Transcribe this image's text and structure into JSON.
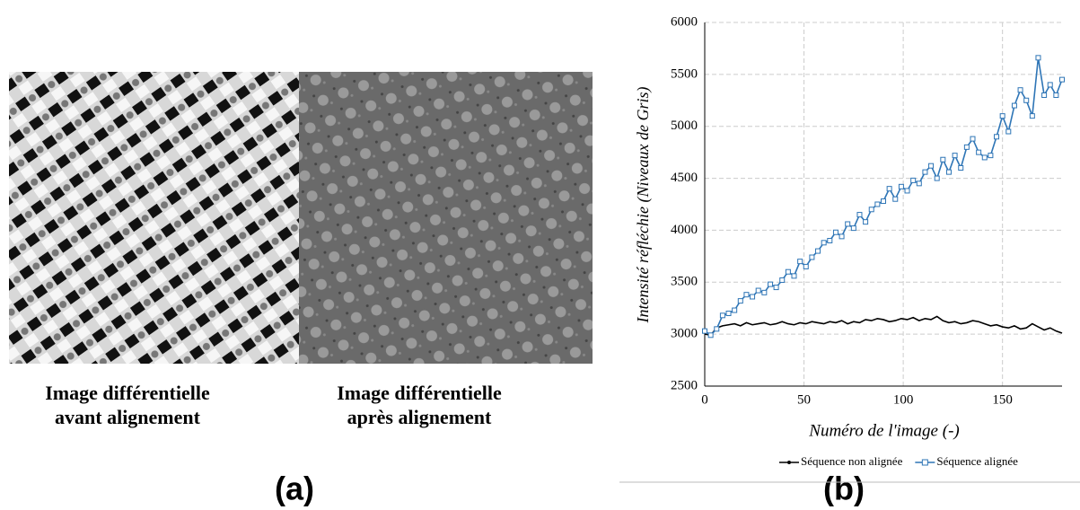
{
  "figure": {
    "captions": [
      [
        "Image différentielle",
        "avant alignement"
      ],
      [
        "Image différentielle",
        "après alignement"
      ]
    ],
    "label_a": "(a)"
  },
  "chart_data": {
    "type": "line",
    "panel_label": "(b)",
    "xlabel": "Numéro de l'image (-)",
    "ylabel": "Intensité réfléchie (Niveaux de Gris)",
    "x": [
      0,
      3,
      6,
      9,
      12,
      15,
      18,
      21,
      24,
      27,
      30,
      33,
      36,
      39,
      42,
      45,
      48,
      51,
      54,
      57,
      60,
      63,
      66,
      69,
      72,
      75,
      78,
      81,
      84,
      87,
      90,
      93,
      96,
      99,
      102,
      105,
      108,
      111,
      114,
      117,
      120,
      123,
      126,
      129,
      132,
      135,
      138,
      141,
      144,
      147,
      150,
      153,
      156,
      159,
      162,
      165,
      168,
      171,
      174,
      177,
      180
    ],
    "series": [
      {
        "name": "Séquence non alignée",
        "color": "#000000",
        "marker": "none",
        "values": [
          3000,
          2990,
          3060,
          3080,
          3090,
          3100,
          3080,
          3110,
          3090,
          3100,
          3110,
          3090,
          3100,
          3120,
          3100,
          3090,
          3110,
          3100,
          3120,
          3110,
          3100,
          3120,
          3110,
          3130,
          3100,
          3120,
          3110,
          3140,
          3130,
          3150,
          3140,
          3120,
          3130,
          3150,
          3140,
          3160,
          3130,
          3150,
          3140,
          3170,
          3130,
          3110,
          3120,
          3100,
          3110,
          3130,
          3120,
          3100,
          3080,
          3090,
          3070,
          3060,
          3080,
          3050,
          3060,
          3100,
          3070,
          3040,
          3060,
          3030,
          3010
        ]
      },
      {
        "name": "Séquence alignée",
        "color": "#2e75b6",
        "marker": "square",
        "values": [
          3030,
          2990,
          3050,
          3180,
          3200,
          3230,
          3320,
          3380,
          3360,
          3420,
          3400,
          3480,
          3450,
          3520,
          3600,
          3560,
          3700,
          3650,
          3740,
          3800,
          3880,
          3900,
          3980,
          3940,
          4060,
          4020,
          4150,
          4080,
          4200,
          4250,
          4280,
          4400,
          4300,
          4420,
          4380,
          4480,
          4450,
          4560,
          4620,
          4500,
          4680,
          4560,
          4720,
          4600,
          4800,
          4880,
          4750,
          4700,
          4720,
          4900,
          5100,
          4950,
          5200,
          5350,
          5250,
          5100,
          5660,
          5300,
          5400,
          5300,
          5450
        ]
      }
    ],
    "xlim": [
      0,
      180
    ],
    "xticks": [
      0,
      50,
      100,
      150
    ],
    "ylim": [
      2500,
      6000
    ],
    "yticks": [
      2500,
      3000,
      3500,
      4000,
      4500,
      5000,
      5500,
      6000
    ],
    "grid": true,
    "legend": "bottom"
  }
}
